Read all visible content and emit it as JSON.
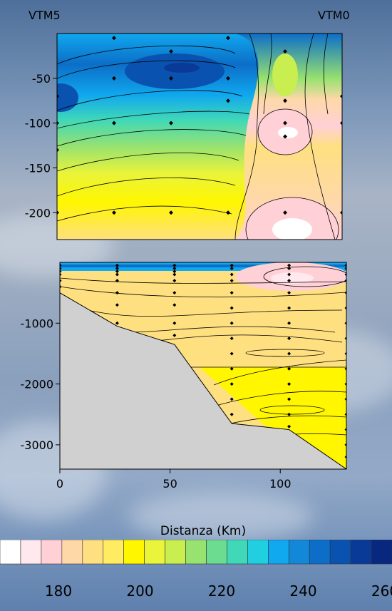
{
  "chart_data": [
    {
      "type": "heatmap",
      "title": "",
      "station_labels": [
        "VTM5",
        "VTM0"
      ],
      "ylim": [
        -230,
        0
      ],
      "y_ticks": [
        -50,
        -100,
        -150,
        -200
      ],
      "xlim": [
        0,
        130
      ],
      "samples": [
        {
          "x": 0,
          "y": -70
        },
        {
          "x": 0,
          "y": -100
        },
        {
          "x": 0,
          "y": -130
        },
        {
          "x": 0,
          "y": -200
        },
        {
          "x": 26,
          "y": -5
        },
        {
          "x": 26,
          "y": -50
        },
        {
          "x": 26,
          "y": -100
        },
        {
          "x": 26,
          "y": -200
        },
        {
          "x": 52,
          "y": -20
        },
        {
          "x": 52,
          "y": -50
        },
        {
          "x": 52,
          "y": -100
        },
        {
          "x": 52,
          "y": -200
        },
        {
          "x": 78,
          "y": -5
        },
        {
          "x": 78,
          "y": -50
        },
        {
          "x": 78,
          "y": -75
        },
        {
          "x": 78,
          "y": -200
        },
        {
          "x": 104,
          "y": -20
        },
        {
          "x": 104,
          "y": -75
        },
        {
          "x": 104,
          "y": -100
        },
        {
          "x": 104,
          "y": -115
        },
        {
          "x": 104,
          "y": -200
        },
        {
          "x": 130,
          "y": -70
        },
        {
          "x": 130,
          "y": -100
        },
        {
          "x": 130,
          "y": -200
        }
      ]
    },
    {
      "type": "heatmap",
      "title": "",
      "xlabel": "Distanza (Km)",
      "xlim": [
        0,
        130
      ],
      "ylim": [
        -3400,
        0
      ],
      "x_ticks": [
        0,
        50,
        100
      ],
      "y_ticks": [
        -1000,
        -2000,
        -3000
      ],
      "bottom_profile": [
        {
          "x": 0,
          "y": -500
        },
        {
          "x": 26,
          "y": -1050
        },
        {
          "x": 52,
          "y": -1350
        },
        {
          "x": 78,
          "y": -2650
        },
        {
          "x": 104,
          "y": -2750
        },
        {
          "x": 130,
          "y": -3400
        }
      ],
      "stations": [
        {
          "x": 0,
          "depths": [
            -50,
            -100,
            -150,
            -200,
            -300,
            -400
          ]
        },
        {
          "x": 26,
          "depths": [
            -50,
            -100,
            -150,
            -200,
            -300,
            -500,
            -700,
            -1000
          ]
        },
        {
          "x": 52,
          "depths": [
            -50,
            -100,
            -150,
            -200,
            -300,
            -500,
            -700,
            -1000,
            -1200
          ]
        },
        {
          "x": 78,
          "depths": [
            -50,
            -100,
            -200,
            -300,
            -500,
            -750,
            -1000,
            -1250,
            -1500,
            -1750,
            -2000,
            -2250,
            -2500
          ]
        },
        {
          "x": 104,
          "depths": [
            -50,
            -100,
            -200,
            -300,
            -500,
            -750,
            -1000,
            -1250,
            -1500,
            -1750,
            -2000,
            -2250,
            -2500,
            -2700
          ]
        },
        {
          "x": 130,
          "depths": [
            -50,
            -100,
            -200,
            -300,
            -500,
            -750,
            -1000,
            -1250,
            -1500,
            -1750,
            -2000,
            -2250,
            -2500,
            -2750,
            -3000,
            -3200,
            -3400
          ]
        }
      ]
    }
  ],
  "colorbar": {
    "colors": [
      "#ffffff",
      "#ffe8ee",
      "#ffd0d6",
      "#ffd8a8",
      "#ffe080",
      "#ffec60",
      "#fff600",
      "#eaf43a",
      "#c8ee50",
      "#98e270",
      "#6cdc90",
      "#40d8b8",
      "#20d0e0",
      "#10a8ee",
      "#1488d8",
      "#0c6ec8",
      "#0a52b0",
      "#0a3a98",
      "#082880"
    ],
    "tick_labels": [
      "180",
      "200",
      "220",
      "240",
      "260"
    ]
  }
}
